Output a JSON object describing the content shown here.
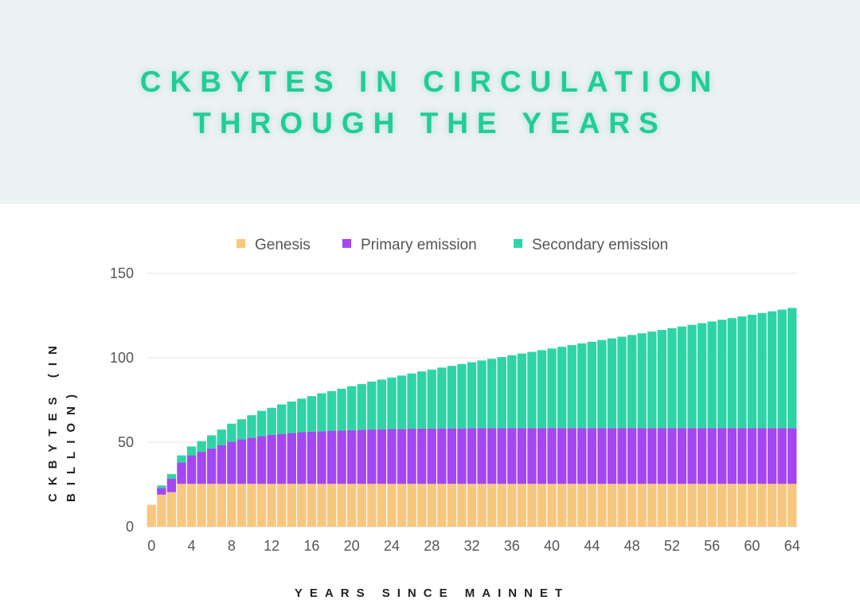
{
  "title": {
    "line1": "CKBYTES IN CIRCULATION",
    "line2": "THROUGH THE YEARS"
  },
  "colors": {
    "genesis": "#f8c77e",
    "primary": "#a446f2",
    "secondary": "#2fd4a6",
    "title": "#22cc96",
    "header_bg": "#ecf1f1"
  },
  "chart_data": {
    "type": "bar",
    "stacked": true,
    "title": "CKBYTES IN CIRCULATION THROUGH THE YEARS",
    "xlabel": "YEARS SINCE MAINNET",
    "ylabel": "CKBYTES (IN BILLION)",
    "ylim": [
      0,
      150
    ],
    "yticks": [
      0,
      50,
      100,
      150
    ],
    "xticks": [
      0,
      4,
      8,
      12,
      16,
      20,
      24,
      28,
      32,
      36,
      40,
      44,
      48,
      52,
      56,
      60,
      64
    ],
    "grid": true,
    "legend_position": "top",
    "categories": [
      0,
      1,
      2,
      3,
      4,
      5,
      6,
      7,
      8,
      9,
      10,
      11,
      12,
      13,
      14,
      15,
      16,
      17,
      18,
      19,
      20,
      21,
      22,
      23,
      24,
      25,
      26,
      27,
      28,
      29,
      30,
      31,
      32,
      33,
      34,
      35,
      36,
      37,
      38,
      39,
      40,
      41,
      42,
      43,
      44,
      45,
      46,
      47,
      48,
      49,
      50,
      51,
      52,
      53,
      54,
      55,
      56,
      57,
      58,
      59,
      60,
      61,
      62,
      63,
      64
    ],
    "series": [
      {
        "name": "Genesis",
        "values": [
          13,
          19,
          20.5,
          25.4,
          25.4,
          25.4,
          25.4,
          25.4,
          25.4,
          25.4,
          25.4,
          25.4,
          25.4,
          25.4,
          25.4,
          25.4,
          25.4,
          25.4,
          25.4,
          25.4,
          25.4,
          25.4,
          25.4,
          25.4,
          25.4,
          25.4,
          25.4,
          25.4,
          25.4,
          25.4,
          25.4,
          25.4,
          25.4,
          25.4,
          25.4,
          25.4,
          25.4,
          25.4,
          25.4,
          25.4,
          25.4,
          25.4,
          25.4,
          25.4,
          25.4,
          25.4,
          25.4,
          25.4,
          25.4,
          25.4,
          25.4,
          25.4,
          25.4,
          25.4,
          25.4,
          25.4,
          25.4,
          25.4,
          25.4,
          25.4,
          25.4,
          25.4,
          25.4,
          25.4,
          25.4
        ]
      },
      {
        "name": "Primary emission",
        "values": [
          0,
          4,
          8,
          12.6,
          16.8,
          18.9,
          20.9,
          22.9,
          24.9,
          26.3,
          27.3,
          28.3,
          29,
          29.5,
          30,
          30.5,
          30.9,
          31.1,
          31.4,
          31.6,
          31.8,
          32,
          32.2,
          32.3,
          32.4,
          32.5,
          32.6,
          32.7,
          32.7,
          32.8,
          32.8,
          32.8,
          32.9,
          32.9,
          32.9,
          32.9,
          33,
          33,
          33,
          33,
          33,
          33,
          33,
          33,
          33,
          33,
          33,
          33,
          33,
          33,
          33,
          33,
          33,
          33,
          33,
          33,
          33,
          33,
          33,
          33,
          33,
          33,
          33,
          33,
          33
        ]
      },
      {
        "name": "Secondary emission",
        "values": [
          0,
          1.4,
          2.7,
          4.2,
          5.3,
          6.4,
          7.8,
          9.2,
          10.7,
          11.9,
          13.3,
          14.9,
          16,
          17.5,
          18.7,
          19.9,
          21,
          22.5,
          23.5,
          24.7,
          26,
          27.1,
          28.3,
          29.4,
          30.5,
          31.6,
          32.7,
          33.8,
          34.9,
          36,
          37,
          38.1,
          39.1,
          40.1,
          41.1,
          42.1,
          43.1,
          44.1,
          45.1,
          46.1,
          47.1,
          48.1,
          49.1,
          50.1,
          51.1,
          52.1,
          53.1,
          54.1,
          55.1,
          56.1,
          57.1,
          58.1,
          59.1,
          60.1,
          61.1,
          62.1,
          63.1,
          64.1,
          65.1,
          66.1,
          67.1,
          68.1,
          69.1,
          70.1,
          71.1
        ]
      }
    ]
  }
}
